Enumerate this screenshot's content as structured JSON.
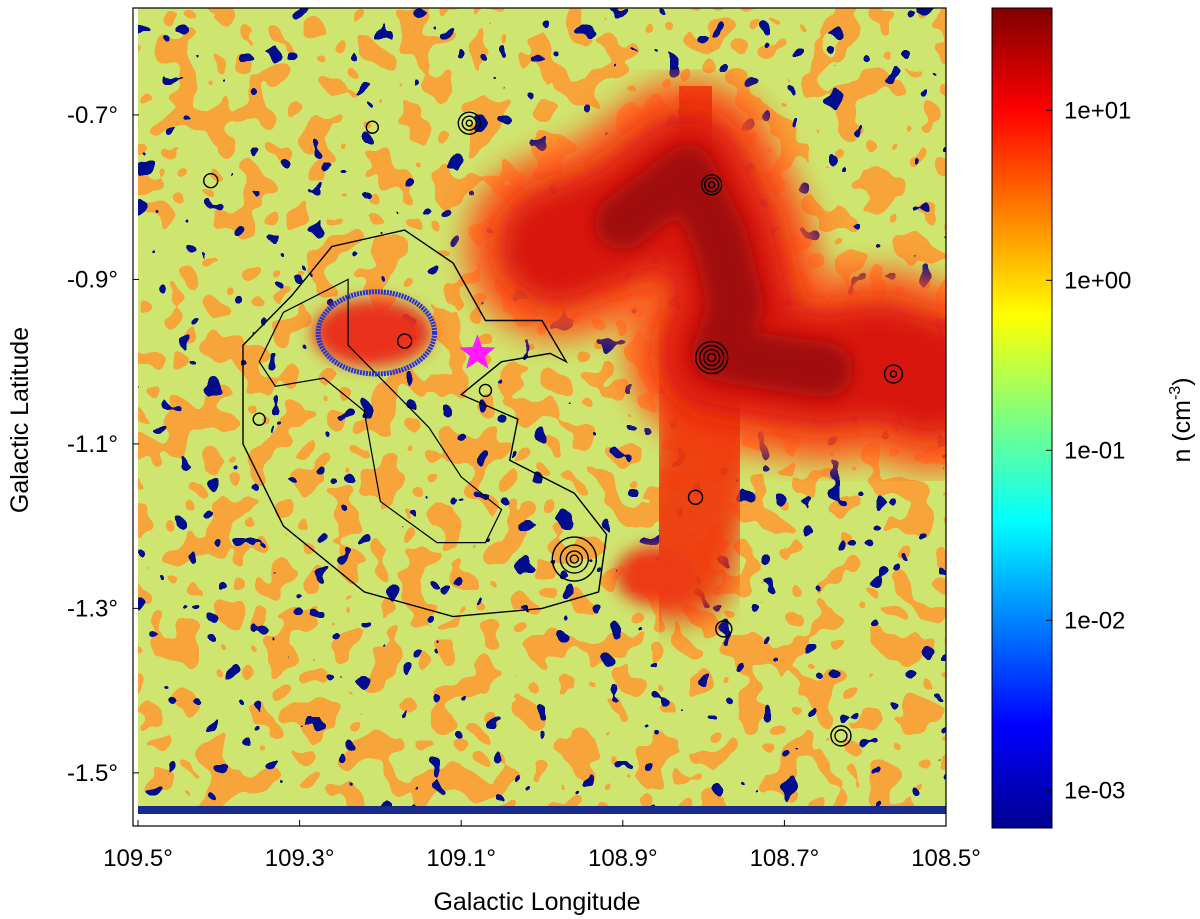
{
  "chart_data": {
    "type": "heatmap",
    "xlabel": "Galactic Longitude",
    "ylabel": "Galactic Latitude",
    "x_reversed": true,
    "xlim": [
      109.5,
      108.5
    ],
    "ylim": [
      -1.55,
      -0.57
    ],
    "x_ticks": [
      {
        "value": 109.5,
        "label": "109.5°"
      },
      {
        "value": 109.3,
        "label": "109.3°"
      },
      {
        "value": 109.1,
        "label": "109.1°"
      },
      {
        "value": 108.9,
        "label": "108.9°"
      },
      {
        "value": 108.7,
        "label": "108.7°"
      },
      {
        "value": 108.5,
        "label": "108.5°"
      }
    ],
    "y_ticks": [
      {
        "value": -0.7,
        "label": "-0.7°"
      },
      {
        "value": -0.9,
        "label": "-0.9°"
      },
      {
        "value": -1.1,
        "label": "-1.1°"
      },
      {
        "value": -1.3,
        "label": "-1.3°"
      },
      {
        "value": -1.5,
        "label": "-1.5°"
      }
    ],
    "colorbar": {
      "label": "n (cm⁻³)",
      "label_base": "n (cm",
      "label_exp": "-3",
      "label_close": ")",
      "scale": "log",
      "colormap": "jet",
      "range": [
        0.0006,
        40
      ],
      "ticks": [
        {
          "value": 10,
          "label": "1e+01"
        },
        {
          "value": 1,
          "label": "1e+00"
        },
        {
          "value": 0.1,
          "label": "1e-01"
        },
        {
          "value": 0.01,
          "label": "1e-02"
        },
        {
          "value": 0.001,
          "label": "1e-03"
        }
      ]
    },
    "dense_cloud": {
      "value_peak": 30,
      "path": [
        [
          108.98,
          -0.86
        ],
        [
          108.9,
          -0.83
        ],
        [
          108.82,
          -0.77
        ],
        [
          108.78,
          -0.85
        ],
        [
          108.76,
          -0.93
        ],
        [
          108.78,
          -0.99
        ],
        [
          108.72,
          -1.0
        ],
        [
          108.65,
          -1.01
        ],
        [
          108.58,
          -1.0
        ],
        [
          108.52,
          -1.02
        ]
      ],
      "branches": [
        [
          [
            108.78,
            -0.99
          ],
          [
            108.8,
            -1.12
          ],
          [
            108.83,
            -1.25
          ]
        ],
        [
          [
            108.82,
            -0.77
          ],
          [
            108.8,
            -0.7
          ]
        ]
      ]
    },
    "markers": [
      {
        "type": "star",
        "l": 109.08,
        "b": -0.99,
        "color": "#ff1aff"
      },
      {
        "type": "ellipse",
        "l": 109.205,
        "b": -0.965,
        "dl": 0.072,
        "db": 0.05,
        "color": "#1f33d6"
      }
    ],
    "contour_color": "#000000"
  }
}
